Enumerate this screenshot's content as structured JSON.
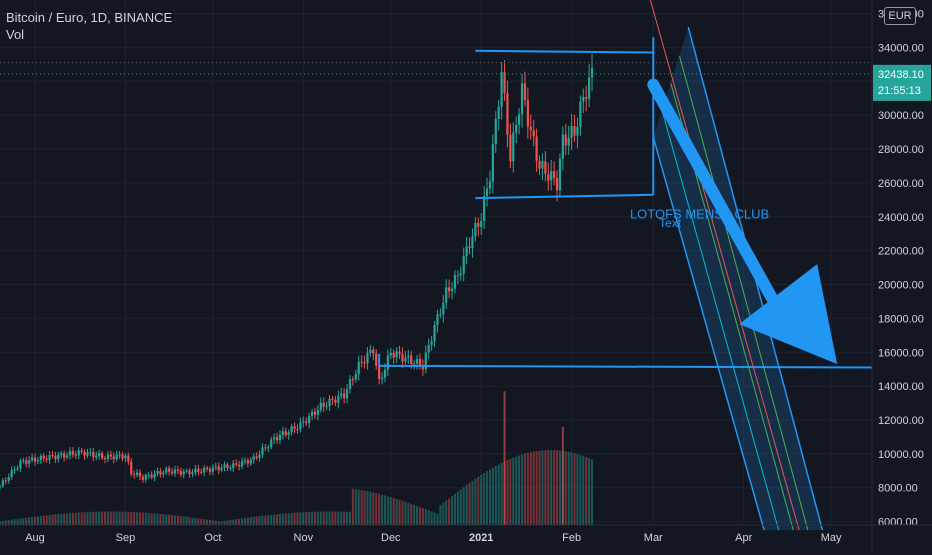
{
  "header": {
    "symbol_line": "Bitcoin / Euro, 1D, BINANCE",
    "volume_label": "Vol"
  },
  "currency_badge": "EUR",
  "price_tag": {
    "value": "32438.10",
    "countdown": "21:55:13",
    "color": "#26a69a"
  },
  "annotations": {
    "club_text": "LOTOFS MENSA CLUB",
    "text_label": "Text"
  },
  "colors": {
    "background": "#131722",
    "grid": "#1e222d",
    "up": "#26a69a",
    "down": "#ef5350",
    "drawing": "#2196f3",
    "text": "#d1d4dc"
  },
  "chart_data": {
    "type": "candlestick",
    "title": "Bitcoin / Euro, 1D, BINANCE",
    "ylabel": "EUR",
    "y_ticks": [
      "6000.00",
      "8000.00",
      "10000.00",
      "12000.00",
      "14000.00",
      "16000.00",
      "18000.00",
      "20000.00",
      "22000.00",
      "24000.00",
      "26000.00",
      "28000.00",
      "30000.00",
      "32000.00",
      "34000.00",
      "36000.00"
    ],
    "x_ticks": [
      "Aug",
      "Sep",
      "Oct",
      "Nov",
      "Dec",
      "2021",
      "Feb",
      "Mar",
      "Apr",
      "May"
    ],
    "ylim": [
      5800,
      36800
    ],
    "xlim": [
      "2020-07-20",
      "2021-05-15"
    ],
    "last_price": 32438.1,
    "price_path": [
      [
        "2020-07-20",
        8100
      ],
      [
        "2020-07-27",
        9500
      ],
      [
        "2020-08-02",
        9700
      ],
      [
        "2020-08-10",
        9900
      ],
      [
        "2020-08-17",
        10100
      ],
      [
        "2020-08-25",
        9800
      ],
      [
        "2020-09-01",
        9900
      ],
      [
        "2020-09-03",
        8900
      ],
      [
        "2020-09-07",
        8600
      ],
      [
        "2020-09-15",
        9000
      ],
      [
        "2020-09-22",
        8900
      ],
      [
        "2020-09-30",
        9100
      ],
      [
        "2020-10-08",
        9300
      ],
      [
        "2020-10-15",
        9700
      ],
      [
        "2020-10-22",
        10900
      ],
      [
        "2020-10-31",
        11700
      ],
      [
        "2020-11-07",
        12800
      ],
      [
        "2020-11-15",
        13500
      ],
      [
        "2020-11-20",
        15200
      ],
      [
        "2020-11-25",
        16200
      ],
      [
        "2020-11-27",
        14200
      ],
      [
        "2020-12-01",
        16000
      ],
      [
        "2020-12-08",
        15500
      ],
      [
        "2020-12-12",
        15200
      ],
      [
        "2020-12-16",
        17500
      ],
      [
        "2020-12-20",
        19500
      ],
      [
        "2020-12-24",
        20500
      ],
      [
        "2020-12-28",
        22500
      ],
      [
        "2021-01-01",
        24000
      ],
      [
        "2021-01-04",
        26500
      ],
      [
        "2021-01-06",
        29500
      ],
      [
        "2021-01-08",
        32500
      ],
      [
        "2021-01-11",
        27500
      ],
      [
        "2021-01-15",
        31500
      ],
      [
        "2021-01-18",
        29000
      ],
      [
        "2021-01-21",
        27000
      ],
      [
        "2021-01-24",
        26500
      ],
      [
        "2021-01-27",
        26000
      ],
      [
        "2021-01-29",
        28500
      ],
      [
        "2021-02-02",
        29000
      ],
      [
        "2021-02-05",
        31000
      ],
      [
        "2021-02-08",
        32438
      ]
    ],
    "volume_markers": [
      [
        "2021-01-09",
        13700
      ],
      [
        "2021-01-29",
        11600
      ]
    ]
  }
}
